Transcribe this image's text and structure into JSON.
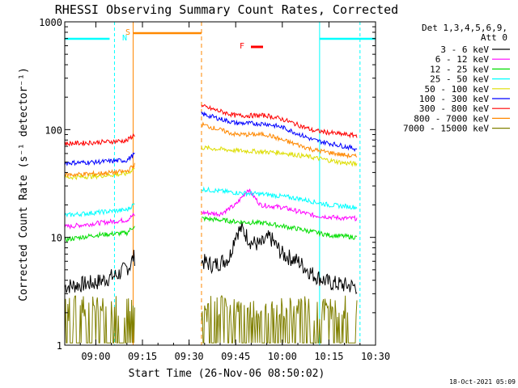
{
  "chart_data": {
    "type": "line",
    "title": "RHESSI Observing Summary Count Rates, Corrected",
    "xlabel": "Start Time (26-Nov-06 08:50:02)",
    "ylabel": "Corrected Count Rate (s⁻¹ detector⁻¹)",
    "y_scale": "log",
    "ylim": [
      1,
      1000
    ],
    "xlim": [
      "08:50",
      "10:30"
    ],
    "x_ticks": [
      "09:00",
      "09:15",
      "09:30",
      "09:45",
      "10:00",
      "10:15",
      "10:30"
    ],
    "y_ticks": [
      "1",
      "10",
      "100",
      "1000"
    ],
    "timestamp": "18-Oct-2021 05:09",
    "legend_header": [
      "Det 1,3,4,5,6,9,",
      "Att 0"
    ],
    "legend_position": "right",
    "series": [
      {
        "name": "3 - 6 keV",
        "color": "#000000",
        "x": [
          "08:50",
          "09:00",
          "09:07",
          "09:11",
          "09:12",
          "09:34",
          "09:38",
          "09:43",
          "09:45",
          "09:47",
          "09:50",
          "09:53",
          "09:56",
          "10:00",
          "10:05",
          "10:10",
          "10:15",
          "10:20",
          "10:24"
        ],
        "y": [
          3.5,
          3.8,
          4.5,
          5.5,
          6.5,
          6.0,
          5.5,
          6.5,
          11,
          12,
          9,
          8.5,
          10,
          7,
          6,
          4.5,
          3.8,
          3.6,
          3.5
        ]
      },
      {
        "name": "6 - 12 keV",
        "color": "#ff00ff",
        "x": [
          "08:50",
          "09:00",
          "09:10",
          "09:12",
          "09:34",
          "09:40",
          "09:45",
          "09:49",
          "09:53",
          "10:00",
          "10:10",
          "10:20",
          "10:24"
        ],
        "y": [
          12.5,
          13.5,
          14.5,
          16,
          17,
          16.5,
          20,
          28,
          20,
          19,
          16,
          15,
          15
        ]
      },
      {
        "name": "12 - 25 keV",
        "color": "#00dd00",
        "x": [
          "08:50",
          "09:00",
          "09:10",
          "09:12",
          "09:34",
          "09:40",
          "09:45",
          "09:55",
          "10:05",
          "10:15",
          "10:24"
        ],
        "y": [
          9.5,
          10.5,
          11,
          12.5,
          15,
          14.5,
          14,
          13.5,
          12,
          10.5,
          10
        ]
      },
      {
        "name": "25 - 50 keV",
        "color": "#00ffff",
        "x": [
          "08:50",
          "09:00",
          "09:10",
          "09:12",
          "09:34",
          "09:45",
          "09:55",
          "10:05",
          "10:15",
          "10:24"
        ],
        "y": [
          16,
          17,
          18,
          20,
          28,
          26,
          25,
          23,
          20,
          19
        ]
      },
      {
        "name": "50 - 100 keV",
        "color": "#dddd00",
        "x": [
          "08:50",
          "09:00",
          "09:10",
          "09:12",
          "09:34",
          "09:45",
          "09:55",
          "10:00",
          "10:10",
          "10:20",
          "10:24"
        ],
        "y": [
          36,
          37,
          39,
          43,
          68,
          64,
          62,
          61,
          55,
          49,
          48
        ]
      },
      {
        "name": "100 - 300 keV",
        "color": "#0000ff",
        "x": [
          "08:50",
          "09:00",
          "09:10",
          "09:12",
          "09:34",
          "09:45",
          "09:55",
          "10:00",
          "10:10",
          "10:20",
          "10:24"
        ],
        "y": [
          49,
          50,
          52,
          58,
          140,
          115,
          113,
          105,
          80,
          70,
          66
        ]
      },
      {
        "name": "300 - 800 keV",
        "color": "#ff0000",
        "x": [
          "08:50",
          "09:00",
          "09:10",
          "09:12",
          "09:34",
          "09:45",
          "09:55",
          "10:00",
          "10:10",
          "10:20",
          "10:24"
        ],
        "y": [
          74,
          76,
          79,
          88,
          165,
          135,
          135,
          125,
          98,
          90,
          88
        ]
      },
      {
        "name": "800 - 7000 keV",
        "color": "#ff8800",
        "x": [
          "08:50",
          "09:00",
          "09:10",
          "09:12",
          "09:34",
          "09:45",
          "09:55",
          "10:00",
          "10:10",
          "10:20",
          "10:24"
        ],
        "y": [
          38,
          39,
          41,
          46,
          112,
          90,
          90,
          80,
          65,
          58,
          56
        ]
      },
      {
        "name": "7000 - 15000 keV",
        "color": "#808000",
        "x": [
          "08:50",
          "09:00",
          "09:10",
          "09:34",
          "09:45",
          "09:55",
          "10:05",
          "10:15",
          "10:24"
        ],
        "y": [
          1.6,
          1.6,
          1.7,
          1.6,
          1.8,
          1.8,
          1.7,
          1.6,
          1.6
        ]
      }
    ],
    "annotations": [
      {
        "label": "N",
        "color": "#00ffff",
        "time": "09:06"
      },
      {
        "label": "S",
        "color": "#ff8800",
        "time": "09:12"
      },
      {
        "label": "F",
        "color": "#ff0000",
        "time": "09:53"
      }
    ]
  }
}
